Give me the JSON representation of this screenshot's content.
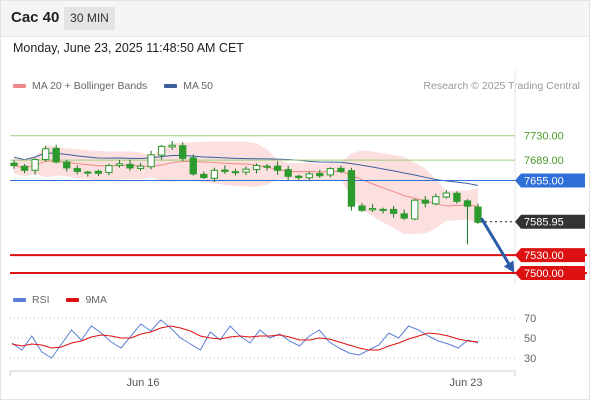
{
  "header": {
    "instrument": "Cac 40",
    "timeframe": "30 MIN",
    "datetime": "Monday, June 23, 2025 11:48:50 AM CET"
  },
  "legend": {
    "ma20_bb": "MA 20 + Bollinger Bands",
    "ma50": "MA 50",
    "credit": "Research © 2025 Trading Central",
    "rsi": "RSI",
    "ma9": "9MA"
  },
  "colors": {
    "bollinger": "#f08a8a",
    "bollinger_fill": "#fbd9d9",
    "ma50": "#3d5f9e",
    "resistance": "#9fcf7a",
    "pivot": "#2f6fd8",
    "support": "#dd1111",
    "candle": "#2c9a2c",
    "price_label": "#333333",
    "rsi": "#5b7fd6",
    "rsi_ma": "#dd1111"
  },
  "chart_data": [
    {
      "type": "candlestick",
      "y_range": [
        7480,
        7840
      ],
      "x_labels": [
        "Jun 16",
        "Jun 23"
      ],
      "close_path": [
        7680,
        7672,
        7690,
        7708,
        7686,
        7676,
        7670,
        7669,
        7667,
        7680,
        7683,
        7676,
        7679,
        7698,
        7712,
        7714,
        7692,
        7666,
        7660,
        7672,
        7670,
        7668,
        7674,
        7680,
        7678,
        7672,
        7662,
        7660,
        7666,
        7663,
        7675,
        7670,
        7612,
        7605,
        7608,
        7606,
        7600,
        7592,
        7622,
        7617,
        7628,
        7634,
        7620,
        7612,
        7585
      ],
      "levels": [
        {
          "label": "7730.00",
          "value": 7730,
          "role": "resistance"
        },
        {
          "label": "7689.00",
          "value": 7689,
          "role": "resistance"
        },
        {
          "label": "7655.00",
          "value": 7655,
          "role": "pivot"
        },
        {
          "label": "7585.95",
          "value": 7585.95,
          "role": "last price"
        },
        {
          "label": "7530.00",
          "value": 7530,
          "role": "support"
        },
        {
          "label": "7500.00",
          "value": 7500,
          "role": "support"
        }
      ],
      "projection": {
        "from": 7590,
        "to": 7500,
        "direction": "down"
      }
    },
    {
      "type": "line",
      "title": "RSI",
      "y_range": [
        20,
        80
      ],
      "y_ticks": [
        "70",
        "50",
        "30"
      ],
      "series": [
        {
          "name": "RSI",
          "values": [
            45,
            38,
            52,
            36,
            30,
            44,
            58,
            48,
            62,
            55,
            46,
            40,
            52,
            64,
            57,
            68,
            60,
            50,
            44,
            38,
            56,
            48,
            62,
            52,
            45,
            58,
            50,
            54,
            47,
            42,
            52,
            58,
            46,
            40,
            35,
            33,
            38,
            43,
            55,
            50,
            62,
            58,
            52,
            47,
            44,
            40,
            48,
            45
          ]
        },
        {
          "name": "9MA",
          "values": [
            44,
            42,
            44,
            43,
            40,
            41,
            45,
            47,
            51,
            53,
            52,
            50,
            50,
            54,
            56,
            60,
            62,
            60,
            57,
            52,
            50,
            49,
            51,
            52,
            51,
            52,
            52,
            53,
            51,
            48,
            48,
            50,
            49,
            46,
            43,
            40,
            38,
            38,
            42,
            45,
            49,
            52,
            55,
            54,
            52,
            49,
            47,
            46
          ]
        }
      ]
    }
  ]
}
